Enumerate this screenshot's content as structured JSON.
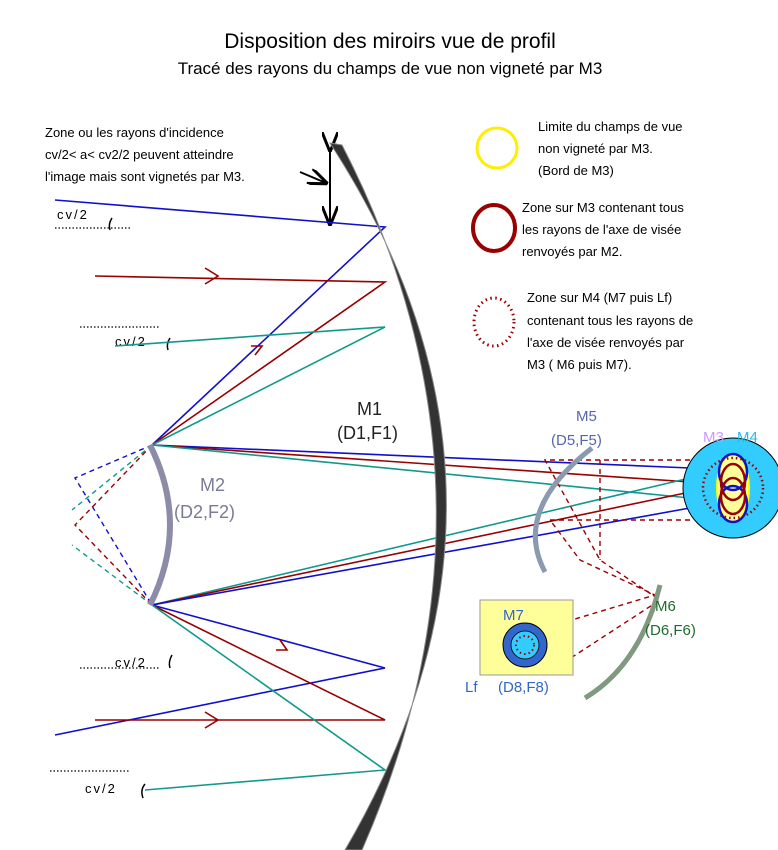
{
  "title": "Disposition des miroirs vue de profil",
  "subtitle": "Tracé des rayons du champs de vue non vigneté par M3",
  "annotation": [
    "Zone ou les rayons d'incidence",
    "cv/2< a< cv2/2 peuvent atteindre",
    "l'image mais sont vignetés par M3."
  ],
  "angle_labels": [
    "cv/2",
    "cv/2",
    "cv/2",
    "cv/2"
  ],
  "legend": [
    {
      "lines": [
        "Limite du champs de vue",
        "non vigneté par M3.",
        "(Bord de M3)"
      ]
    },
    {
      "lines": [
        "Zone sur M3 contenant tous",
        "les rayons de l'axe de visée",
        "renvoyés par M2."
      ]
    },
    {
      "lines": [
        "Zone sur M4 (M7 puis Lf)",
        "contenant tous les rayons de",
        "l'axe de visée renvoyés par",
        "M3 ( M6 puis M7)."
      ]
    }
  ],
  "mirrors": [
    {
      "name": "M1",
      "focal": "(D1,F1)"
    },
    {
      "name": "M2",
      "focal": "(D2,F2)"
    },
    {
      "name": "M5",
      "focal": "(D5,F5)"
    },
    {
      "name": "M6",
      "focal": "(D6,F6)"
    },
    {
      "name": "Lf",
      "focal": "(D8,F8)"
    }
  ],
  "labels": {
    "m3": "M3",
    "m4": "M4",
    "m7": "M7"
  }
}
